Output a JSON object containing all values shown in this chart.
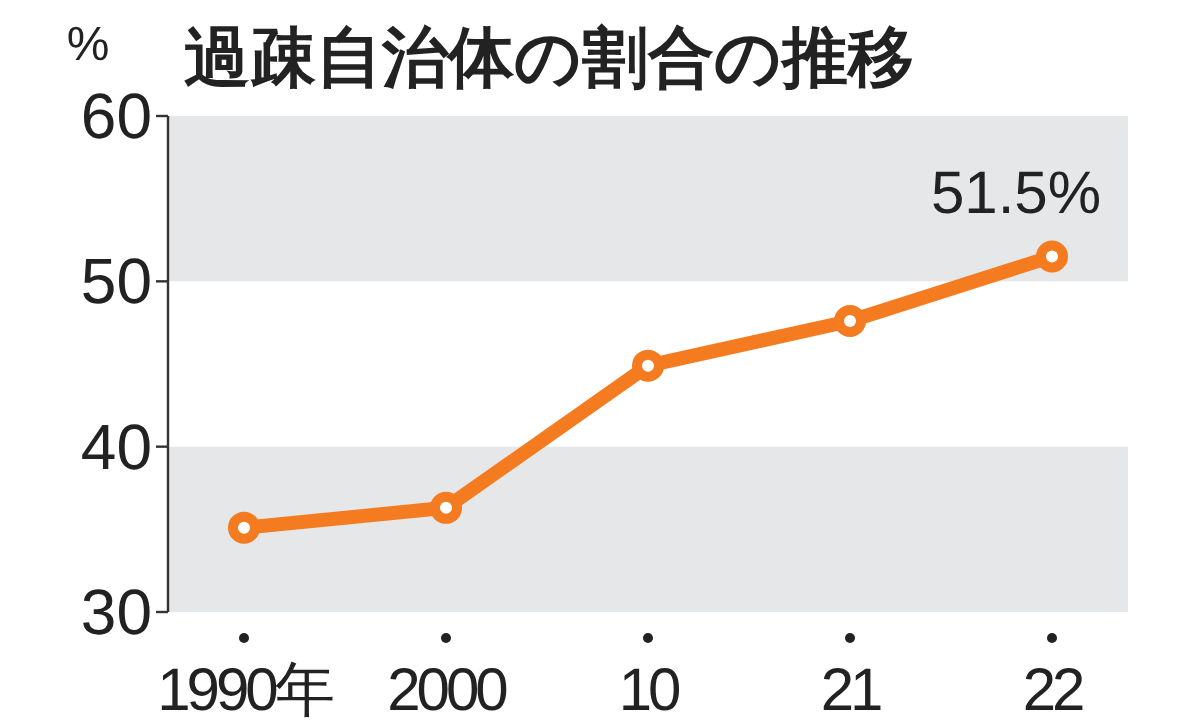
{
  "chart_data": {
    "type": "line",
    "title": "過疎自治体の割合の推移",
    "ylabel": "%",
    "categories": [
      "1990年",
      "2000",
      "10",
      "21",
      "22"
    ],
    "series": [
      {
        "color": "#f47b20",
        "values": [
          35.1,
          36.3,
          44.9,
          47.6,
          51.5
        ],
        "value_labels": [
          null,
          null,
          null,
          null,
          "51.5%"
        ]
      }
    ],
    "ylim": [
      30,
      60
    ],
    "yticks": [
      30,
      40,
      50,
      60
    ],
    "bands": [
      {
        "axis": "y",
        "from": 30,
        "to": 40,
        "color": "#e6e7e8"
      },
      {
        "axis": "y",
        "from": 50,
        "to": 60,
        "color": "#e6e7e8"
      }
    ],
    "marker": "circle"
  }
}
